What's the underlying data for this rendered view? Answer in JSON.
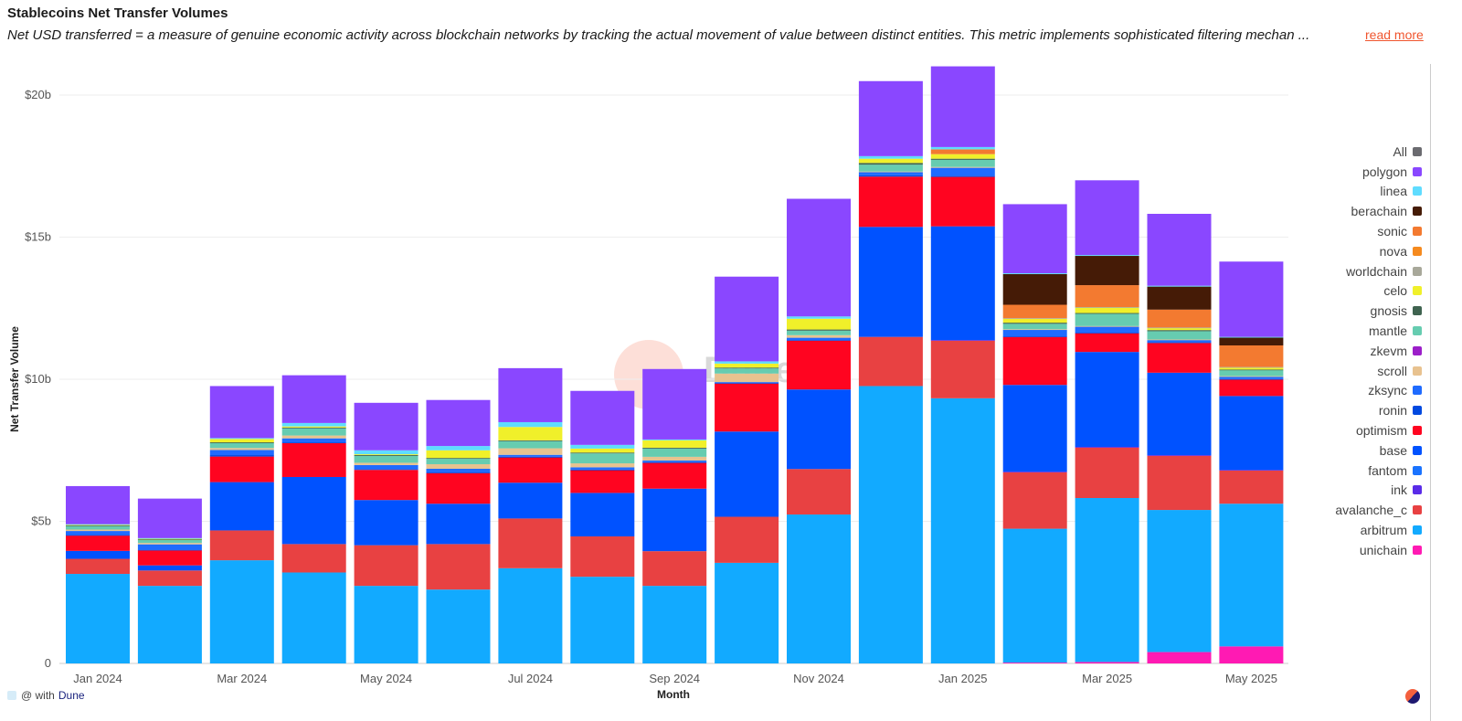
{
  "header": {
    "title": "Stablecoins Net Transfer Volumes",
    "subtitle": "Net USD transferred = a measure of genuine economic activity across blockchain networks by tracking the actual movement of value between distinct entities. This metric implements sophisticated filtering mechan ...",
    "read_more": "read more"
  },
  "footer": {
    "credit_prefix": "@ with",
    "credit_brand": "Dune",
    "watermark": "Dune"
  },
  "chart_data": {
    "type": "bar",
    "stacked": true,
    "title": "Stablecoins Net Transfer Volumes",
    "xlabel": "Month",
    "ylabel": "Net Transfer Volume",
    "ylim": [
      0,
      21
    ],
    "yunit": "b",
    "yticks": [
      {
        "v": 0,
        "label": "0"
      },
      {
        "v": 5,
        "label": "$5b"
      },
      {
        "v": 10,
        "label": "$10b"
      },
      {
        "v": 15,
        "label": "$15b"
      },
      {
        "v": 20,
        "label": "$20b"
      }
    ],
    "categories": [
      "Jan 2024",
      "Feb 2024",
      "Mar 2024",
      "Apr 2024",
      "May 2024",
      "Jun 2024",
      "Jul 2024",
      "Aug 2024",
      "Sep 2024",
      "Oct 2024",
      "Nov 2024",
      "Dec 2024",
      "Jan 2025",
      "Feb 2025",
      "Mar 2025",
      "Apr 2025",
      "May 2025"
    ],
    "xtick_labels": [
      "Jan 2024",
      "",
      "Mar 2024",
      "",
      "May 2024",
      "",
      "Jul 2024",
      "",
      "Sep 2024",
      "",
      "Nov 2024",
      "",
      "Jan 2025",
      "",
      "Mar 2025",
      "",
      "May 2025"
    ],
    "legend_position": "right",
    "legend": [
      {
        "name": "All",
        "color": "#6b6b70"
      },
      {
        "name": "polygon",
        "color": "#8a47ff"
      },
      {
        "name": "linea",
        "color": "#5fdcff"
      },
      {
        "name": "berachain",
        "color": "#451b06"
      },
      {
        "name": "sonic",
        "color": "#f37a30"
      },
      {
        "name": "nova",
        "color": "#f58a1f"
      },
      {
        "name": "worldchain",
        "color": "#a8a89a"
      },
      {
        "name": "celo",
        "color": "#f0f02a"
      },
      {
        "name": "gnosis",
        "color": "#3f6350"
      },
      {
        "name": "mantle",
        "color": "#66ccb0"
      },
      {
        "name": "zkevm",
        "color": "#9c1fc9"
      },
      {
        "name": "scroll",
        "color": "#e8c28f"
      },
      {
        "name": "zksync",
        "color": "#1f6bff"
      },
      {
        "name": "ronin",
        "color": "#0049e0"
      },
      {
        "name": "optimism",
        "color": "#ff0420"
      },
      {
        "name": "base",
        "color": "#0052ff"
      },
      {
        "name": "fantom",
        "color": "#1a73ff"
      },
      {
        "name": "ink",
        "color": "#5a2be8"
      },
      {
        "name": "avalanche_c",
        "color": "#e84142"
      },
      {
        "name": "arbitrum",
        "color": "#12aaff"
      },
      {
        "name": "unichain",
        "color": "#ff1ab3"
      }
    ],
    "series": [
      {
        "name": "unichain",
        "color": "#ff1ab3",
        "values": [
          0,
          0,
          0,
          0,
          0,
          0,
          0,
          0,
          0,
          0,
          0,
          0,
          0,
          0.03,
          0.05,
          0.4,
          0.6
        ]
      },
      {
        "name": "arbitrum",
        "color": "#12aaff",
        "values": [
          3.15,
          2.73,
          3.63,
          3.2,
          2.73,
          2.6,
          3.35,
          3.05,
          2.73,
          3.54,
          5.24,
          9.76,
          9.33,
          4.71,
          5.77,
          5.0,
          5.02
        ]
      },
      {
        "name": "avalanche_c",
        "color": "#e84142",
        "values": [
          0.53,
          0.54,
          1.05,
          1.0,
          1.43,
          1.6,
          1.75,
          1.42,
          1.22,
          1.62,
          1.6,
          1.73,
          2.03,
          1.99,
          1.78,
          1.91,
          1.17
        ]
      },
      {
        "name": "ink",
        "color": "#5a2be8",
        "values": [
          0,
          0,
          0,
          0,
          0,
          0,
          0,
          0,
          0,
          0,
          0,
          0,
          0.02,
          0.02,
          0.02,
          0.02,
          0.02
        ]
      },
      {
        "name": "fantom",
        "color": "#1a73ff",
        "values": [
          0,
          0,
          0,
          0,
          0,
          0,
          0,
          0,
          0,
          0,
          0,
          0,
          0,
          0,
          0,
          0,
          0
        ]
      },
      {
        "name": "base",
        "color": "#0052ff",
        "values": [
          0.28,
          0.18,
          1.7,
          2.36,
          1.59,
          1.42,
          1.26,
          1.53,
          2.2,
          3.0,
          2.8,
          3.87,
          4.0,
          3.05,
          3.34,
          2.9,
          2.6
        ]
      },
      {
        "name": "optimism",
        "color": "#ff0420",
        "values": [
          0.54,
          0.53,
          0.9,
          1.19,
          1.06,
          1.08,
          0.89,
          0.8,
          0.91,
          1.69,
          1.72,
          1.77,
          1.74,
          1.69,
          0.66,
          1.05,
          0.58
        ]
      },
      {
        "name": "ronin",
        "color": "#0049e0",
        "values": [
          0.02,
          0.02,
          0.05,
          0.03,
          0.03,
          0.02,
          0.02,
          0.02,
          0.02,
          0.02,
          0.02,
          0.05,
          0.04,
          0.02,
          0.02,
          0.02,
          0.02
        ]
      },
      {
        "name": "zksync",
        "color": "#1f6bff",
        "values": [
          0.14,
          0.19,
          0.18,
          0.14,
          0.14,
          0.13,
          0.07,
          0.08,
          0.06,
          0.03,
          0.08,
          0.11,
          0.28,
          0.23,
          0.21,
          0.08,
          0.08
        ]
      },
      {
        "name": "scroll",
        "color": "#e8c28f",
        "values": [
          0.05,
          0.05,
          0.07,
          0.1,
          0.08,
          0.16,
          0.23,
          0.14,
          0.13,
          0.3,
          0.09,
          0.02,
          0.03,
          0.02,
          0.02,
          0.02,
          0.02
        ]
      },
      {
        "name": "zkevm",
        "color": "#9c1fc9",
        "values": [
          0,
          0,
          0,
          0,
          0,
          0,
          0,
          0,
          0,
          0,
          0,
          0,
          0,
          0,
          0,
          0,
          0
        ]
      },
      {
        "name": "mantle",
        "color": "#66ccb0",
        "values": [
          0.12,
          0.1,
          0.17,
          0.25,
          0.24,
          0.19,
          0.25,
          0.35,
          0.29,
          0.18,
          0.16,
          0.24,
          0.25,
          0.19,
          0.43,
          0.29,
          0.21
        ]
      },
      {
        "name": "gnosis",
        "color": "#3f6350",
        "values": [
          0.03,
          0.03,
          0.03,
          0.03,
          0.03,
          0.03,
          0.03,
          0.03,
          0.03,
          0.03,
          0.04,
          0.06,
          0.04,
          0.04,
          0.03,
          0.04,
          0.02
        ]
      },
      {
        "name": "celo",
        "color": "#f0f02a",
        "values": [
          0.02,
          0.02,
          0.12,
          0.04,
          0.03,
          0.27,
          0.47,
          0.14,
          0.26,
          0.14,
          0.38,
          0.15,
          0.16,
          0.14,
          0.19,
          0.07,
          0.07
        ]
      },
      {
        "name": "worldchain",
        "color": "#a8a89a",
        "values": [
          0,
          0,
          0,
          0,
          0,
          0,
          0,
          0,
          0,
          0,
          0,
          0,
          0,
          0.02,
          0.02,
          0.02,
          0.02
        ]
      },
      {
        "name": "nova",
        "color": "#f58a1f",
        "values": [
          0,
          0,
          0,
          0,
          0,
          0,
          0,
          0,
          0,
          0,
          0,
          0,
          0,
          0,
          0,
          0,
          0
        ]
      },
      {
        "name": "sonic",
        "color": "#f37a30",
        "values": [
          0,
          0,
          0,
          0,
          0,
          0,
          0,
          0,
          0,
          0,
          0,
          0,
          0.17,
          0.47,
          0.77,
          0.63,
          0.76
        ]
      },
      {
        "name": "berachain",
        "color": "#451b06",
        "values": [
          0,
          0,
          0,
          0,
          0,
          0,
          0,
          0,
          0,
          0,
          0,
          0,
          0,
          1.08,
          1.03,
          0.81,
          0.28
        ]
      },
      {
        "name": "linea",
        "color": "#5fdcff",
        "values": [
          0.02,
          0.02,
          0.03,
          0.12,
          0.14,
          0.15,
          0.17,
          0.13,
          0.03,
          0.08,
          0.08,
          0.09,
          0.08,
          0.03,
          0.03,
          0.03,
          0.02
        ]
      },
      {
        "name": "polygon",
        "color": "#8a47ff",
        "values": [
          1.34,
          1.39,
          1.83,
          1.68,
          1.67,
          1.62,
          1.9,
          1.9,
          2.48,
          2.98,
          4.14,
          2.64,
          2.84,
          2.43,
          2.63,
          2.53,
          2.65
        ]
      }
    ]
  }
}
